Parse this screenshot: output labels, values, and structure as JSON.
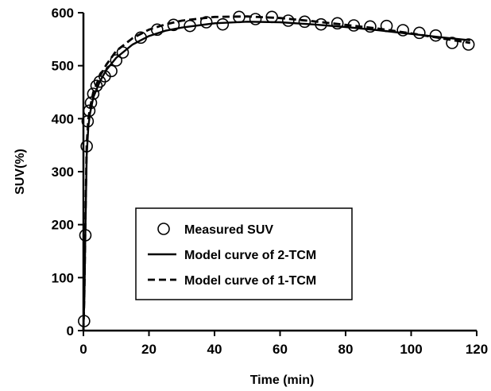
{
  "chart_data": {
    "type": "scatter",
    "title": "",
    "xlabel": "Time (min)",
    "ylabel": "SUV(%)",
    "xlim": [
      0,
      120
    ],
    "ylim": [
      0,
      600
    ],
    "x_ticks": [
      0,
      20,
      40,
      60,
      80,
      100,
      120
    ],
    "y_ticks": [
      0,
      100,
      200,
      300,
      400,
      500,
      600
    ],
    "grid": false,
    "legend_position": "center-left",
    "series": [
      {
        "name": "Measured SUV",
        "kind": "markers",
        "points": [
          [
            0.2,
            18
          ],
          [
            0.6,
            180
          ],
          [
            1.0,
            348
          ],
          [
            1.3,
            395
          ],
          [
            1.8,
            415
          ],
          [
            2.3,
            430
          ],
          [
            3.0,
            447
          ],
          [
            4.0,
            462
          ],
          [
            5.0,
            470
          ],
          [
            6.5,
            480
          ],
          [
            8.5,
            490
          ],
          [
            10,
            510
          ],
          [
            12,
            525
          ],
          [
            17.5,
            553
          ],
          [
            22.5,
            568
          ],
          [
            27.5,
            577
          ],
          [
            32.5,
            575
          ],
          [
            37.5,
            582
          ],
          [
            42.5,
            578
          ],
          [
            47.5,
            592
          ],
          [
            52.5,
            588
          ],
          [
            57.5,
            592
          ],
          [
            62.5,
            585
          ],
          [
            67.5,
            583
          ],
          [
            72.5,
            578
          ],
          [
            77.5,
            580
          ],
          [
            82.5,
            576
          ],
          [
            87.5,
            574
          ],
          [
            92.5,
            575
          ],
          [
            97.5,
            567
          ],
          [
            102.5,
            562
          ],
          [
            107.5,
            557
          ],
          [
            112.5,
            543
          ],
          [
            117.5,
            540
          ]
        ]
      },
      {
        "name": "Model curve of 2-TCM",
        "kind": "solid-line",
        "points": [
          [
            0,
            0
          ],
          [
            0.3,
            60
          ],
          [
            0.6,
            190
          ],
          [
            1,
            330
          ],
          [
            1.5,
            385
          ],
          [
            2,
            410
          ],
          [
            3,
            440
          ],
          [
            5,
            470
          ],
          [
            7,
            492
          ],
          [
            10,
            515
          ],
          [
            15,
            540
          ],
          [
            20,
            556
          ],
          [
            25,
            566
          ],
          [
            30,
            572
          ],
          [
            40,
            580
          ],
          [
            50,
            583
          ],
          [
            60,
            582
          ],
          [
            70,
            578
          ],
          [
            80,
            573
          ],
          [
            90,
            567
          ],
          [
            100,
            560
          ],
          [
            110,
            553
          ],
          [
            118,
            548
          ]
        ]
      },
      {
        "name": "Model curve of 1-TCM",
        "kind": "dashed-line",
        "points": [
          [
            0,
            0
          ],
          [
            0.3,
            70
          ],
          [
            0.6,
            210
          ],
          [
            1,
            350
          ],
          [
            1.5,
            400
          ],
          [
            2,
            420
          ],
          [
            3,
            450
          ],
          [
            5,
            480
          ],
          [
            7,
            502
          ],
          [
            10,
            528
          ],
          [
            15,
            552
          ],
          [
            20,
            568
          ],
          [
            25,
            578
          ],
          [
            30,
            585
          ],
          [
            40,
            592
          ],
          [
            50,
            593
          ],
          [
            60,
            590
          ],
          [
            70,
            584
          ],
          [
            80,
            577
          ],
          [
            90,
            570
          ],
          [
            100,
            561
          ],
          [
            110,
            551
          ],
          [
            118,
            543
          ]
        ]
      }
    ]
  }
}
